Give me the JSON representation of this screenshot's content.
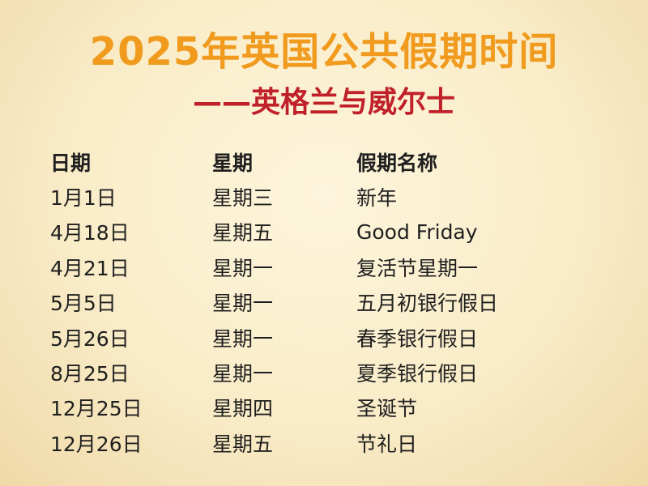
{
  "title": "2025年英国公共假期时间",
  "subtitle": "——英格兰与威尔士",
  "colors": {
    "title": "#f09a1e",
    "subtitle": "#c0202a",
    "text": "#1f1f1f",
    "background": "#f9ecc8"
  },
  "table": {
    "headers": [
      "日期",
      "星期",
      "假期名称"
    ],
    "rows": [
      [
        "1月1日",
        "星期三",
        "新年"
      ],
      [
        "4月18日",
        "星期五",
        "Good Friday"
      ],
      [
        "4月21日",
        "星期一",
        "复活节星期一"
      ],
      [
        "5月5日",
        "星期一",
        "五月初银行假日"
      ],
      [
        "5月26日",
        "星期一",
        "春季银行假日"
      ],
      [
        "8月25日",
        "星期一",
        "夏季银行假日"
      ],
      [
        "12月25日",
        "星期四",
        "圣诞节"
      ],
      [
        "12月26日",
        "星期五",
        "节礼日"
      ]
    ]
  }
}
